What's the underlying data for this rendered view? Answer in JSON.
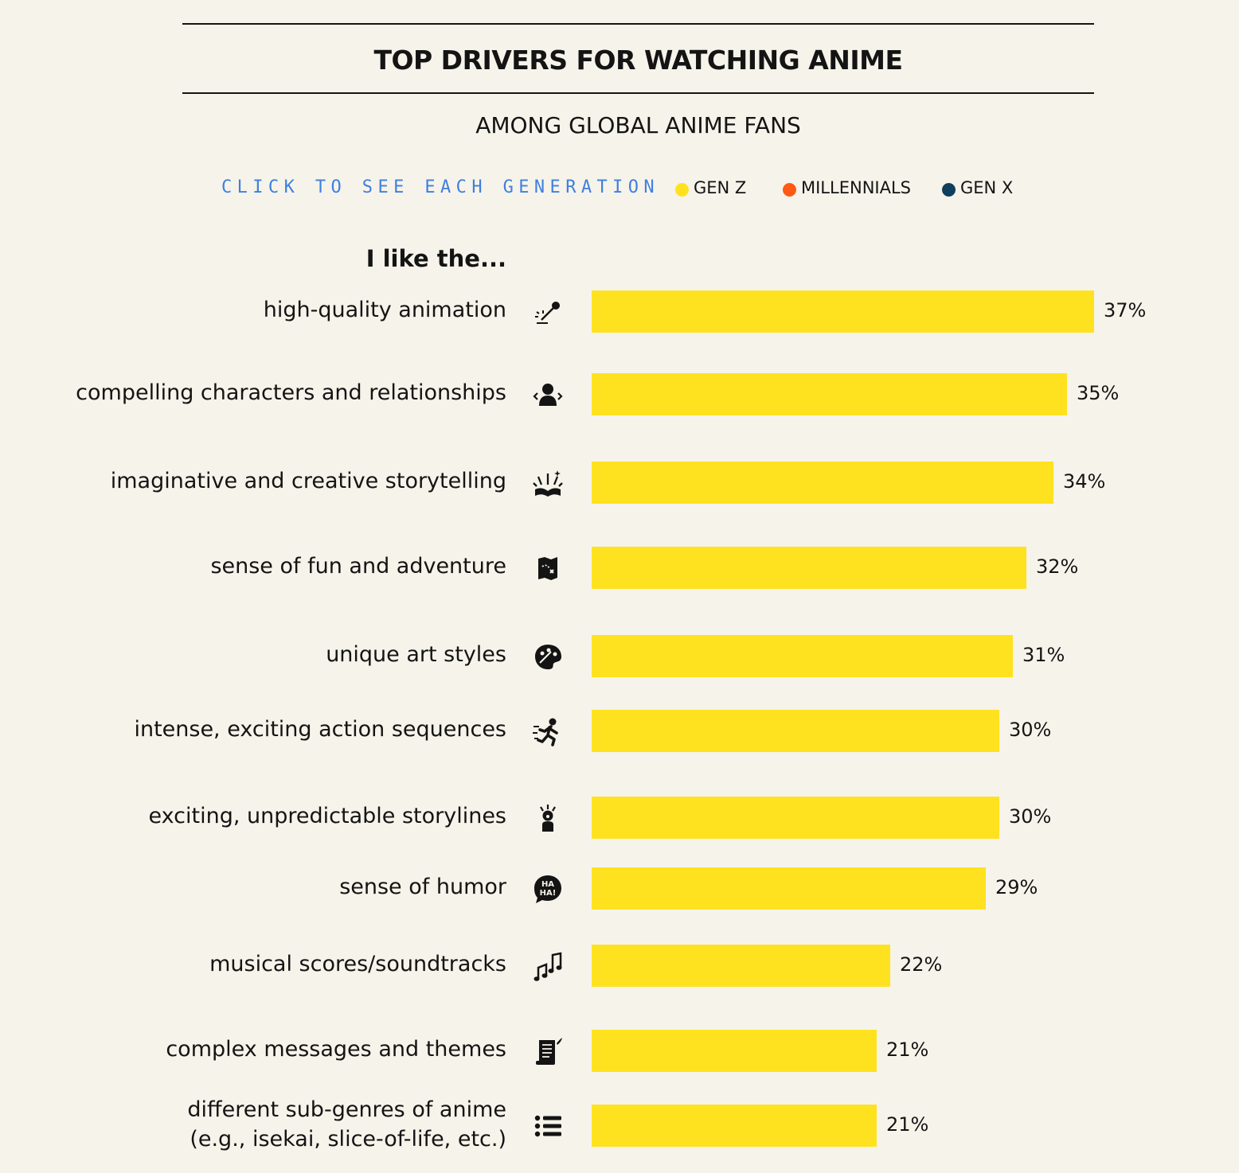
{
  "header": {
    "title": "TOP DRIVERS FOR WATCHING ANIME",
    "subtitle": "AMONG GLOBAL ANIME FANS"
  },
  "legend": {
    "cta": "CLICK TO SEE EACH GENERATION",
    "items": [
      {
        "label": "GEN Z",
        "color": "#ffe21f"
      },
      {
        "label": "MILLENNIALS",
        "color": "#ff5a14"
      },
      {
        "label": "GEN X",
        "color": "#0f3f5c"
      }
    ]
  },
  "chart_data": {
    "type": "bar",
    "orientation": "horizontal",
    "title": "TOP DRIVERS FOR WATCHING ANIME",
    "subtitle": "AMONG GLOBAL ANIME FANS",
    "category_header": "I like the...",
    "active_series": "GEN Z",
    "bar_color": "#ffe21f",
    "xlim": [
      0,
      37
    ],
    "categories": [
      {
        "label": "high-quality animation",
        "icon": "magic-wand-icon",
        "value": 37,
        "display": "37%"
      },
      {
        "label": "compelling characters and relationships",
        "icon": "person-relationship-icon",
        "value": 35,
        "display": "35%"
      },
      {
        "label": "imaginative and creative storytelling",
        "icon": "open-book-sparkle-icon",
        "value": 34,
        "display": "34%"
      },
      {
        "label": "sense of fun and adventure",
        "icon": "treasure-map-icon",
        "value": 32,
        "display": "32%"
      },
      {
        "label": "unique art styles",
        "icon": "paint-palette-icon",
        "value": 31,
        "display": "31%"
      },
      {
        "label": "intense, exciting action sequences",
        "icon": "running-figure-icon",
        "value": 30,
        "display": "30%"
      },
      {
        "label": "exciting, unpredictable storylines",
        "icon": "surprised-figure-icon",
        "value": 30,
        "display": "30%"
      },
      {
        "label": "sense of humor",
        "icon": "haha-speech-bubble-icon",
        "value": 29,
        "display": "29%"
      },
      {
        "label": "musical scores/soundtracks",
        "icon": "music-notes-icon",
        "value": 22,
        "display": "22%"
      },
      {
        "label": "complex messages and themes",
        "icon": "scroll-quill-icon",
        "value": 21,
        "display": "21%"
      },
      {
        "label": "different sub-genres of anime\n(e.g., isekai, slice-of-life, etc.)",
        "icon": "list-icon",
        "value": 21,
        "display": "21%"
      }
    ]
  }
}
